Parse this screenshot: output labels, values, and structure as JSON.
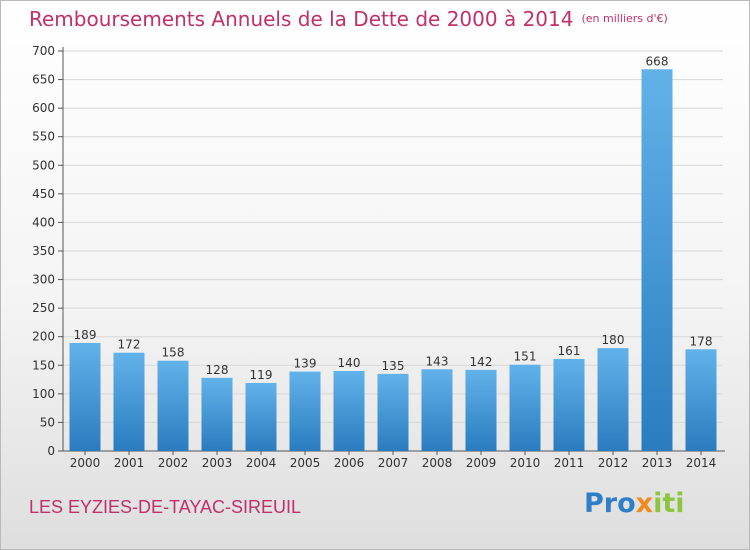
{
  "header": {
    "title": "Remboursements Annuels de la Dette de 2000 à 2014",
    "unit": "(en milliers d'€)"
  },
  "footer": {
    "location": "LES EYZIES-DE-TAYAC-SIREUIL",
    "logo_text": "Proxiti",
    "logo_parts": [
      "Pro",
      "x",
      "iti"
    ]
  },
  "colors": {
    "title": "#c0306a",
    "bar_top": "#62b2ea",
    "bar_bottom": "#2a7cbf",
    "logo_blue": "#2f7fc8",
    "logo_orange": "#f28a1e",
    "logo_green": "#8cc63f"
  },
  "chart_data": {
    "type": "bar",
    "title": "Remboursements Annuels de la Dette de 2000 à 2014",
    "unit": "(en milliers d'€)",
    "categories": [
      "2000",
      "2001",
      "2002",
      "2003",
      "2004",
      "2005",
      "2006",
      "2007",
      "2008",
      "2009",
      "2010",
      "2011",
      "2012",
      "2013",
      "2014"
    ],
    "values": [
      189,
      172,
      158,
      128,
      119,
      139,
      140,
      135,
      143,
      142,
      151,
      161,
      180,
      668,
      178
    ],
    "ylim": [
      0,
      700
    ],
    "yticks": [
      0,
      50,
      100,
      150,
      200,
      250,
      300,
      350,
      400,
      450,
      500,
      550,
      600,
      650,
      700
    ],
    "grid": true
  }
}
